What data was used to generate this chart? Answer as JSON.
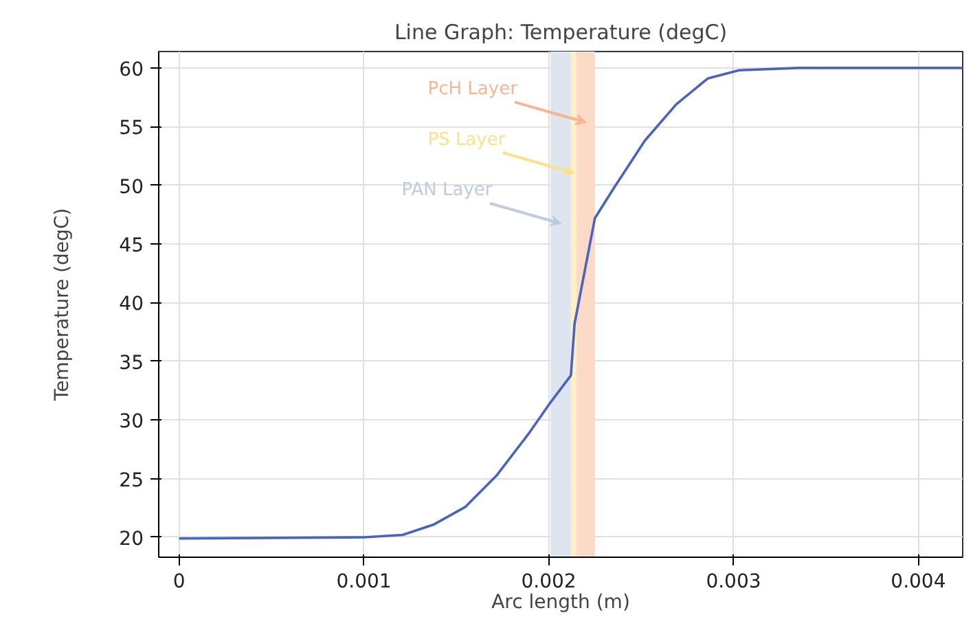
{
  "chart_data": {
    "type": "line",
    "title": "Line Graph: Temperature (degC)",
    "xlabel": "Arc length (m)",
    "ylabel": "Temperature (degC)",
    "x": [
      0,
      0.001,
      0.00121,
      0.00138,
      0.00155,
      0.00172,
      0.00189,
      0.00201,
      0.00212,
      0.00214,
      0.00225,
      0.00235,
      0.00252,
      0.00269,
      0.00286,
      0.00303,
      0.00335,
      0.00424
    ],
    "series": [
      {
        "color": "#4a63c0",
        "values": [
          19.9,
          20,
          20.2,
          21.1,
          22.6,
          25.3,
          28.8,
          31.5,
          33.8,
          38.2,
          47.2,
          49.7,
          53.8,
          56.9,
          59.1,
          59.8,
          60,
          60
        ]
      }
    ],
    "xlim": [
      -0.00011,
      0.00424
    ],
    "ylim": [
      18.3,
      61.4
    ],
    "xticks": [
      0,
      0.001,
      0.002,
      0.003,
      0.004
    ],
    "yticks": [
      20,
      25,
      30,
      35,
      40,
      45,
      50,
      55,
      60
    ],
    "grid": true,
    "bands": [
      {
        "axis": "x",
        "from": 0.00201,
        "to": 0.00212,
        "label": "PAN Layer",
        "color": "#dfe5ef"
      },
      {
        "axis": "x",
        "from": 0.00212,
        "to": 0.00215,
        "label": "PS Layer",
        "color": "#fdf0c4"
      },
      {
        "axis": "x",
        "from": 0.00215,
        "to": 0.00225,
        "label": "PcH Layer",
        "color": "#fbdac8"
      }
    ]
  }
}
